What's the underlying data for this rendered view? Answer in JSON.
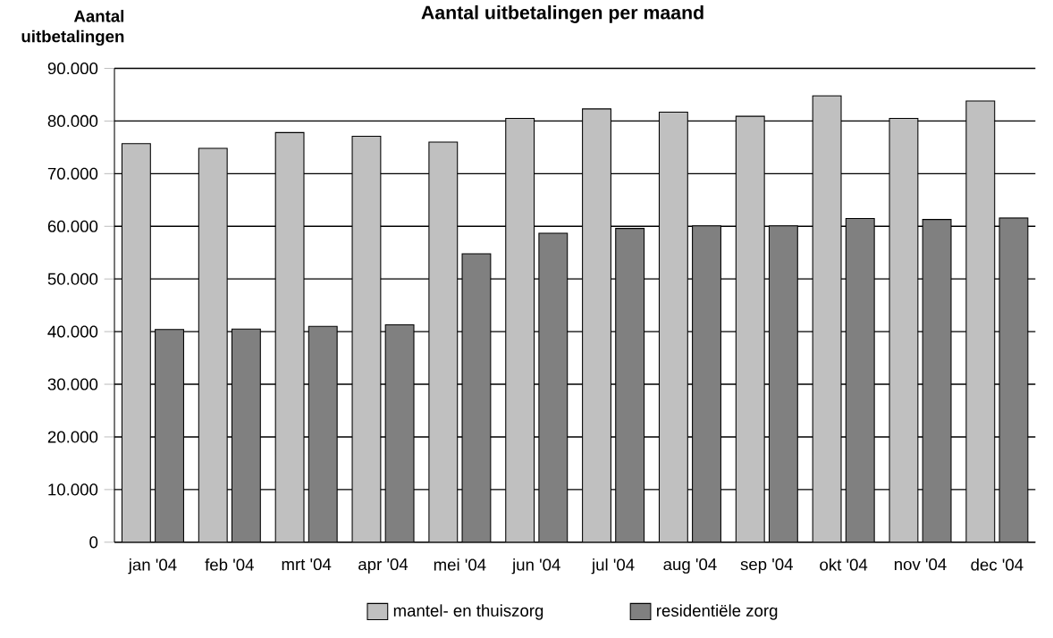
{
  "chart_data": {
    "type": "bar",
    "title": "Aantal uitbetalingen per maand",
    "ylabel": "Aantal uitbetalingen",
    "categories": [
      "jan '04",
      "feb '04",
      "mrt '04",
      "apr '04",
      "mei '04",
      "jun '04",
      "jul '04",
      "aug '04",
      "sep '04",
      "okt '04",
      "nov '04",
      "dec '04"
    ],
    "series": [
      {
        "name": "mantel- en thuiszorg",
        "color": "#c0c0c0",
        "values": [
          75700,
          74800,
          77800,
          77100,
          76000,
          80500,
          82300,
          81700,
          80900,
          84800,
          80500,
          83800
        ]
      },
      {
        "name": "residentiële zorg",
        "color": "#808080",
        "values": [
          40400,
          40500,
          41000,
          41300,
          54800,
          58700,
          59600,
          60100,
          60100,
          61500,
          61300,
          61600
        ]
      }
    ],
    "ylim": [
      0,
      90000
    ],
    "yticks": [
      0,
      {
        "value": 10000,
        "label": "10.000"
      },
      {
        "value": 20000,
        "label": "20.000"
      },
      {
        "value": 30000,
        "label": "30.000"
      },
      {
        "value": 40000,
        "label": "40.000"
      },
      {
        "value": 50000,
        "label": "50.000"
      },
      {
        "value": 60000,
        "label": "60.000"
      },
      {
        "value": 70000,
        "label": "70.000"
      },
      {
        "value": 80000,
        "label": "80.000"
      },
      {
        "value": 90000,
        "label": "90.000"
      }
    ],
    "grid": "y",
    "legend": "bottom"
  }
}
